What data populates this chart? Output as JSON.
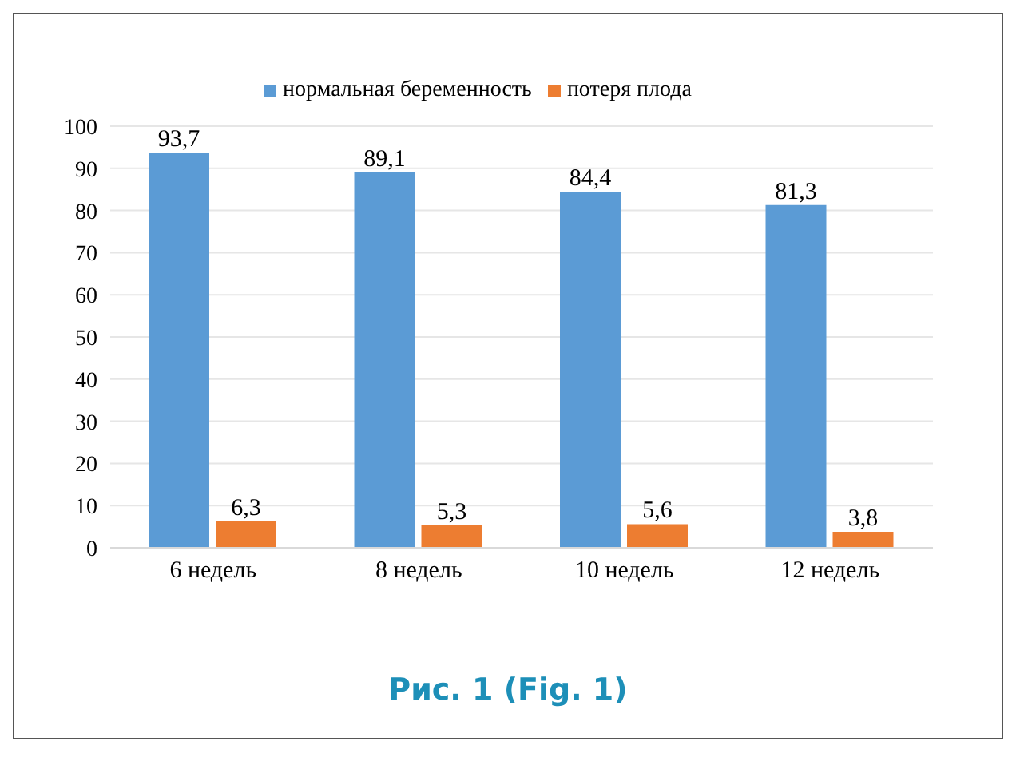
{
  "chart_data": {
    "type": "bar",
    "categories": [
      "6 недель",
      "8 недель",
      "10 недель",
      "12 недель"
    ],
    "series": [
      {
        "name": "нормальная беременность",
        "color": "#5b9bd5",
        "values": [
          93.7,
          89.1,
          84.4,
          81.3
        ],
        "value_labels": [
          "93,7",
          "89,1",
          "84,4",
          "81,3"
        ]
      },
      {
        "name": "потеря плода",
        "color": "#ed7d31",
        "values": [
          6.3,
          5.3,
          5.6,
          3.8
        ],
        "value_labels": [
          "6,3",
          "5,3",
          "5,6",
          "3,8"
        ]
      }
    ],
    "ylim": [
      0,
      100
    ],
    "yticks": [
      0,
      10,
      20,
      30,
      40,
      50,
      60,
      70,
      80,
      90,
      100
    ],
    "grid": "y",
    "legend": "top",
    "annotations": [
      "Рис. 1 (Fig. 1)"
    ]
  }
}
